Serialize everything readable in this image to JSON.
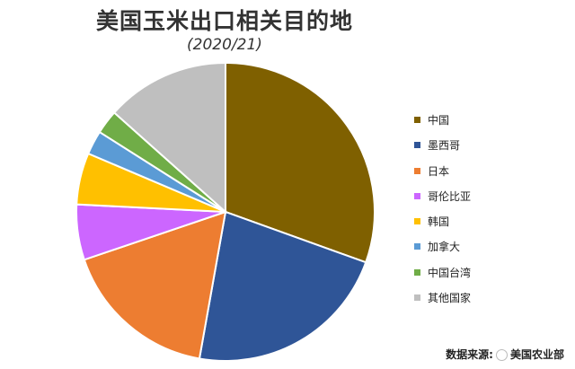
{
  "chart_data": {
    "type": "pie",
    "title": "美国玉米出口相关目的地",
    "subtitle": "(2020/21)",
    "legend_position": "right",
    "categories": [
      "中国",
      "墨西哥",
      "日本",
      "哥伦比亚",
      "韩国",
      "加拿大",
      "中国台湾",
      "其他国家"
    ],
    "values": [
      30.5,
      22.3,
      17.0,
      6.0,
      5.6,
      2.6,
      2.6,
      13.4
    ],
    "colors": [
      "#7F6000",
      "#2F5597",
      "#ED7D31",
      "#CC66FF",
      "#FFC000",
      "#5B9BD5",
      "#70AD47",
      "#BFBFBF"
    ]
  },
  "footer": {
    "source_prefix": "数据来源:",
    "source_name": "美国农业部"
  }
}
